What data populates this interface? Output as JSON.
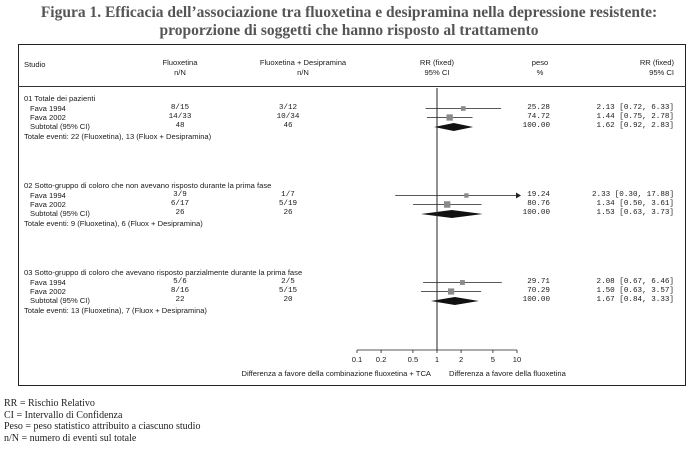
{
  "title_line1": "Figura 1. Efficacia dell’associazione tra fluoxetina e desipramina nella depressione resistente:",
  "title_line2": "proporzione di soggetti che hanno risposto al trattamento",
  "headers": {
    "studio": "Studio",
    "fluox": "Fluoxetina",
    "fluox_sub": "n/N",
    "combo": "Fluoxetina + Desipramina",
    "combo_sub": "n/N",
    "rr_plot": "RR (fixed)",
    "rr_plot_sub": "95% CI",
    "peso": "peso",
    "peso_sub": "%",
    "rr_text": "RR (fixed)",
    "rr_text_sub": "95% CI"
  },
  "chart_data": {
    "type": "forest",
    "x_scale": "log",
    "x_ticks": [
      "0.1",
      "0.2",
      "0.5",
      "1",
      "2",
      "5",
      "10"
    ],
    "x_range": [
      0.1,
      10
    ],
    "xlabel_left": "Differenza a favore della combinazione fluoxetina + TCA",
    "xlabel_right": "Differenza a favore della fluoxetina",
    "groups": [
      {
        "title": "01 Totale dei pazienti",
        "rows": [
          {
            "study": "Fava 1994",
            "fluox": "8/15",
            "combo": "3/12",
            "peso": "25.28",
            "rr_text": "2.13 [0.72, 6.33]",
            "rr": 2.13,
            "lo": 0.72,
            "hi": 6.33,
            "arrow": false
          },
          {
            "study": "Fava 2002",
            "fluox": "14/33",
            "combo": "10/34",
            "peso": "74.72",
            "rr_text": "1.44 [0.75, 2.78]",
            "rr": 1.44,
            "lo": 0.75,
            "hi": 2.78,
            "arrow": false
          }
        ],
        "subtotal": {
          "label": "Subtotal (95% CI)",
          "fluox": "48",
          "combo": "46",
          "peso": "100.00",
          "rr_text": "1.62 [0.92, 2.83]",
          "rr": 1.62,
          "lo": 0.92,
          "hi": 2.83
        },
        "events": "Totale eventi: 22 (Fluoxetina), 13 (Fluox + Desipramina)"
      },
      {
        "title": "02 Sotto-gruppo di coloro che non avevano risposto durante la prima fase",
        "rows": [
          {
            "study": "Fava 1994",
            "fluox": "3/9",
            "combo": "1/7",
            "peso": "19.24",
            "rr_text": "2.33 [0.30, 17.88]",
            "rr": 2.33,
            "lo": 0.3,
            "hi": 17.88,
            "arrow": true
          },
          {
            "study": "Fava 2002",
            "fluox": "6/17",
            "combo": "5/19",
            "peso": "80.76",
            "rr_text": "1.34 [0.50, 3.61]",
            "rr": 1.34,
            "lo": 0.5,
            "hi": 3.61,
            "arrow": false
          }
        ],
        "subtotal": {
          "label": "Subtotal (95% CI)",
          "fluox": "26",
          "combo": "26",
          "peso": "100.00",
          "rr_text": "1.53 [0.63, 3.73]",
          "rr": 1.53,
          "lo": 0.63,
          "hi": 3.73
        },
        "events": "Totale eventi: 9 (Fluoxetina), 6 (Fluox + Desipramina)"
      },
      {
        "title": "03 Sotto-gruppo di coloro che avevano risposto parzialmente durante la prima fase",
        "rows": [
          {
            "study": "Fava 1994",
            "fluox": "5/6",
            "combo": "2/5",
            "peso": "29.71",
            "rr_text": "2.08 [0.67, 6.46]",
            "rr": 2.08,
            "lo": 0.67,
            "hi": 6.46,
            "arrow": false
          },
          {
            "study": "Fava 2002",
            "fluox": "8/16",
            "combo": "5/15",
            "peso": "70.29",
            "rr_text": "1.50 [0.63, 3.57]",
            "rr": 1.5,
            "lo": 0.63,
            "hi": 3.57,
            "arrow": false
          }
        ],
        "subtotal": {
          "label": "Subtotal (95% CI)",
          "fluox": "22",
          "combo": "20",
          "peso": "100.00",
          "rr_text": "1.67 [0.84, 3.33]",
          "rr": 1.67,
          "lo": 0.84,
          "hi": 3.33
        },
        "events": "Totale eventi: 13 (Fluoxetina), 7 (Fluox + Desipramina)"
      }
    ]
  },
  "legend": [
    "RR = Rischio Relativo",
    "CI = Intervallo di Confidenza",
    "Peso = peso statistico attribuito a ciascuno studio",
    "n/N = numero di eventi sul totale"
  ],
  "colors": {
    "square": "#8a8a8a",
    "diamond": "#111111",
    "line": "#222222"
  }
}
